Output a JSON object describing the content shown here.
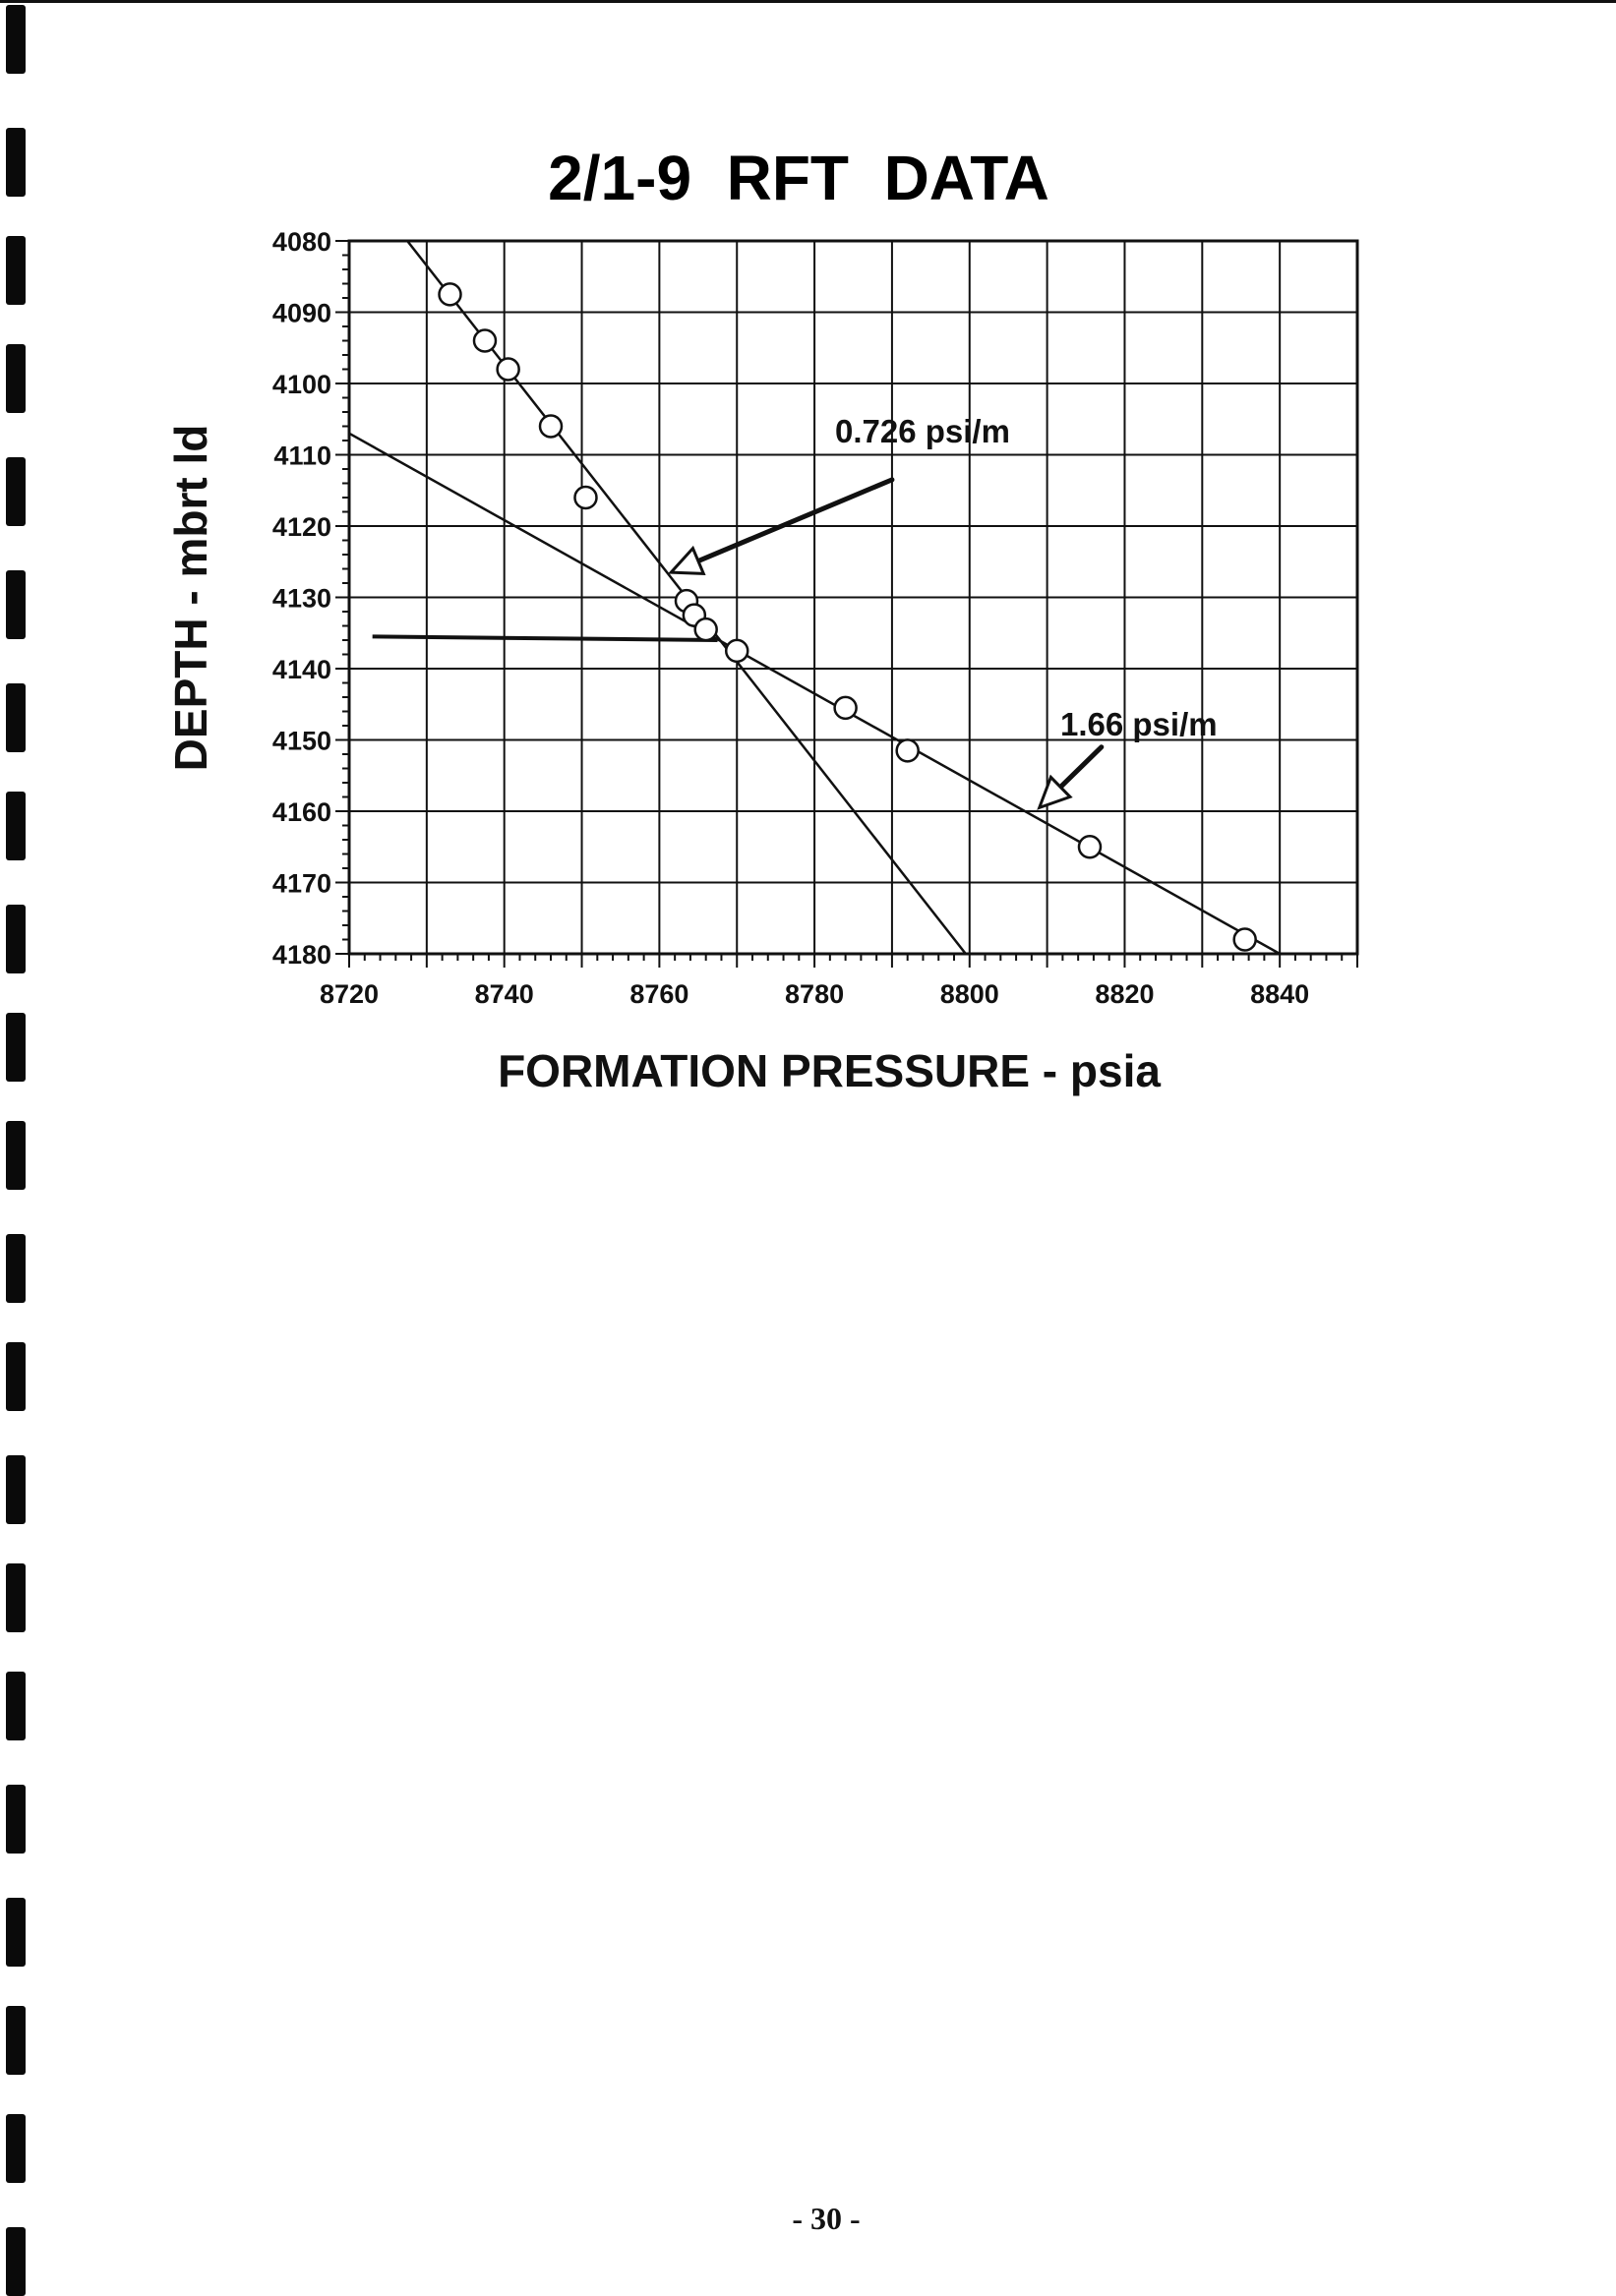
{
  "page": {
    "number": "- 30 -"
  },
  "chart_data": {
    "type": "scatter",
    "title": "2/1-9  RFT  DATA",
    "xlabel": "FORMATION PRESSURE - psia",
    "ylabel": "DEPTH - mbrt ld",
    "xlim": [
      8720,
      8850
    ],
    "ylim": [
      4180,
      4080
    ],
    "y_inverted": true,
    "x_ticks": [
      "8720",
      "8740",
      "8760",
      "8780",
      "8800",
      "8820",
      "8840"
    ],
    "y_ticks": [
      "4080",
      "4090",
      "4100",
      "4110",
      "4120",
      "4130",
      "4140",
      "4150",
      "4160",
      "4170",
      "4180"
    ],
    "grid": true,
    "series": [
      {
        "points": [
          {
            "x": 8733,
            "y": 4087.5
          },
          {
            "x": 8737.5,
            "y": 4094
          },
          {
            "x": 8740.5,
            "y": 4098
          },
          {
            "x": 8746,
            "y": 4106
          },
          {
            "x": 8750.5,
            "y": 4116
          },
          {
            "x": 8763.5,
            "y": 4130.5
          },
          {
            "x": 8764.5,
            "y": 4132.5
          },
          {
            "x": 8766,
            "y": 4134.5
          },
          {
            "x": 8770,
            "y": 4137.5
          },
          {
            "x": 8784,
            "y": 4145.5
          },
          {
            "x": 8792,
            "y": 4151.5
          },
          {
            "x": 8815.5,
            "y": 4165
          },
          {
            "x": 8835.5,
            "y": 4178
          }
        ]
      }
    ],
    "lines": [
      {
        "x1": 8727.5,
        "y1": 4080,
        "x2": 8799.5,
        "y2": 4180
      },
      {
        "x1": 8720,
        "y1": 4107,
        "x2": 8840,
        "y2": 4180
      },
      {
        "x1": 8723,
        "y1": 4135.5,
        "x2": 8767.5,
        "y2": 4136
      }
    ],
    "annotations": [
      {
        "text": "0.726 psi/m"
      },
      {
        "text": "1.66 psi/m"
      }
    ],
    "arrows": [
      {
        "from_x": 8790,
        "from_y": 4113.5,
        "to_x": 8761.5,
        "to_y": 4126.5
      },
      {
        "from_x": 8817,
        "from_y": 4151,
        "to_x": 8809,
        "to_y": 4159.5
      }
    ]
  }
}
